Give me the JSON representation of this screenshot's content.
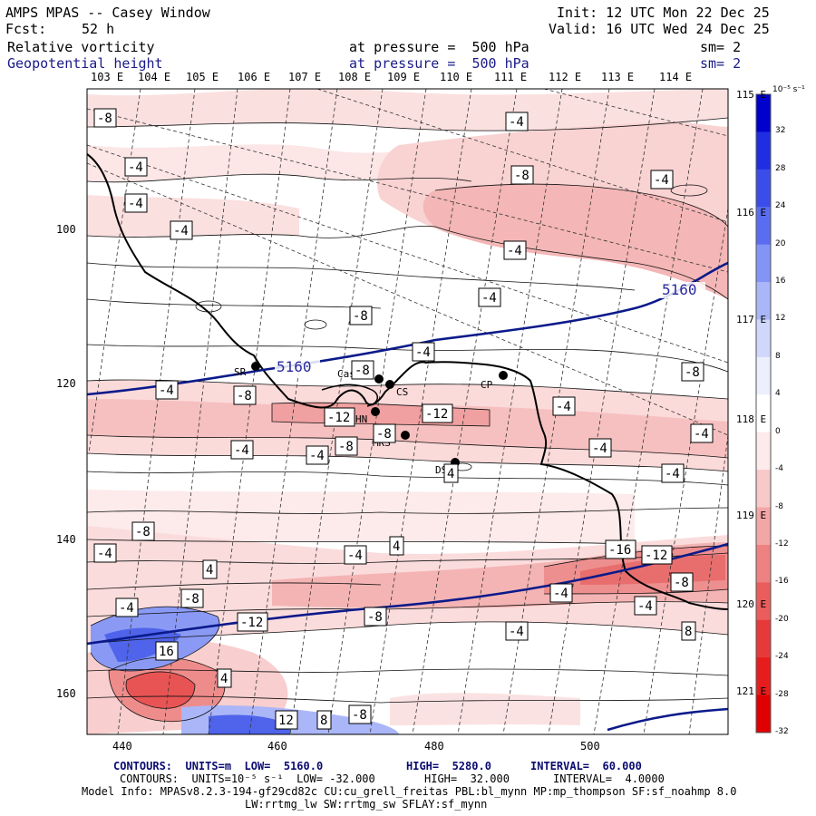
{
  "header": {
    "title": "AMPS MPAS -- Casey Window",
    "init": "Init: 12 UTC Mon 22 Dec 25",
    "fcst_label": "Fcst:",
    "fcst_value": "52 h",
    "valid": "Valid: 16 UTC Wed 24 Dec 25",
    "field1_name": "Relative vorticity",
    "field1_level": "at pressure =  500 hPa",
    "field1_sm": "sm= 2",
    "field2_name": "Geopotential height",
    "field2_level": "at pressure =  500 hPa",
    "field2_sm": "sm= 2"
  },
  "top_lon_labels": [
    "103 E",
    "104 E",
    "105 E",
    "106 E",
    "107 E",
    "108 E",
    "109 E",
    "110 E",
    "111 E",
    "112 E",
    "113 E",
    "114 E"
  ],
  "right_lon_labels": [
    "115 E",
    "116 E",
    "117 E",
    "118 E",
    "119 E",
    "120 E",
    "121 E"
  ],
  "y_axis": [
    "100",
    "120",
    "140",
    "160"
  ],
  "x_axis": [
    "440",
    "460",
    "480",
    "500"
  ],
  "stations": [
    "SR",
    "Casey",
    "CS",
    "CP",
    "HN",
    "MKS",
    "DS"
  ],
  "height_labels": [
    "5160",
    "5160"
  ],
  "vort_labels": [
    "-8",
    "-4",
    "-4",
    "-4",
    "-8",
    "-4",
    "-4",
    "-8",
    "-4",
    "-4",
    "-4",
    "-8",
    "-8",
    "-4",
    "-12",
    "-4",
    "-8",
    "-12",
    "-4",
    "-8",
    "-4",
    "-4",
    "-4",
    "-8",
    "-4",
    "4",
    "-8",
    "4",
    "-4",
    "-4",
    "4",
    "-8",
    "-16",
    "-12",
    "-8",
    "-4",
    "-4",
    "-12",
    "-8",
    "-4",
    "8",
    "16",
    "12",
    "8",
    "-8",
    "-4",
    "4"
  ],
  "colorbar": {
    "unit": "10⁻⁵ s⁻¹",
    "ticks": [
      "32",
      "28",
      "24",
      "20",
      "16",
      "12",
      "8",
      "4",
      "0",
      "-4",
      "-8",
      "-12",
      "-16",
      "-20",
      "-24",
      "-28",
      "-32"
    ],
    "colors": [
      "#0000cc",
      "#1f2ee0",
      "#3b4de8",
      "#5a6df0",
      "#8294f5",
      "#aab6f8",
      "#cfd7fb",
      "#ecf0fe",
      "#ffffff",
      "#fdeaea",
      "#f8c9c9",
      "#f3a6a6",
      "#ee8282",
      "#ea5d5d",
      "#e63a3a",
      "#e51d1d",
      "#e00000"
    ]
  },
  "footer": {
    "line1_label": "CONTOURS:  UNITS=m  LOW=  5160.0",
    "line1_high": "HIGH=  5280.0",
    "line1_interval": "INTERVAL=  60.000",
    "line2_label": "CONTOURS:  UNITS=10⁻⁵ s⁻¹  LOW= -32.000",
    "line2_high": "HIGH=  32.000",
    "line2_interval": "INTERVAL=  4.0000",
    "model_info": "Model Info: MPASv8.2.3-194-gf29cd82c CU:cu_grell_freitas PBL:bl_mynn MP:mp_thompson SF:sf_noahmp 8.0",
    "model_info2": "LW:rrtmg_lw SW:rrtmg_sw SFLAY:sf_mynn"
  }
}
